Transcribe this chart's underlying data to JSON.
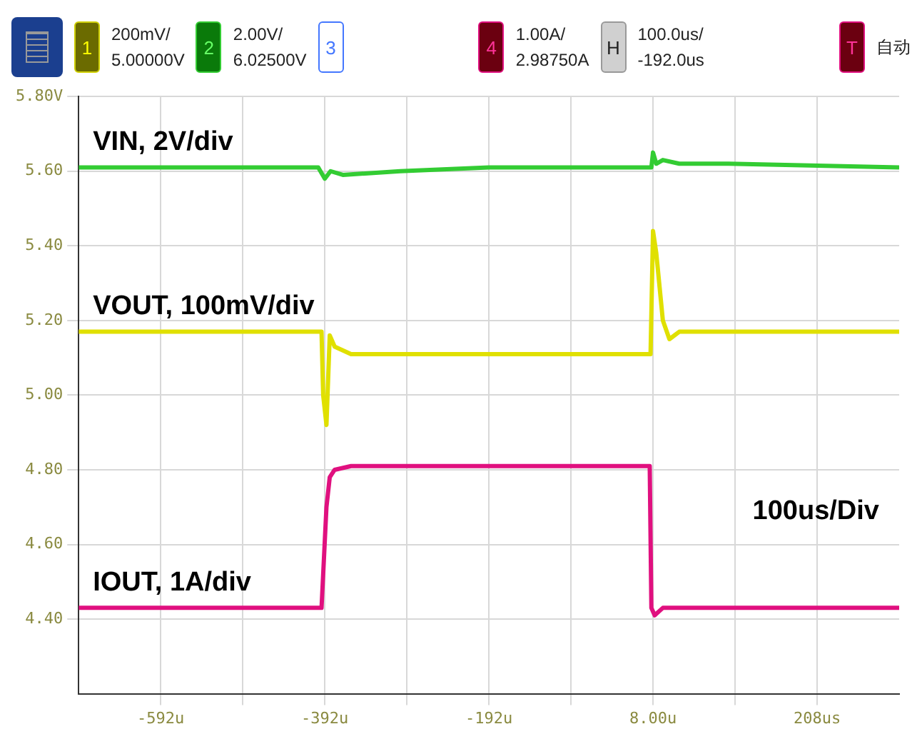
{
  "chart_data": {
    "type": "line",
    "xlim": [
      -692,
      308
    ],
    "ylim": [
      4.2,
      5.8
    ],
    "xticks": [
      {
        "value": -592,
        "label": "-592u"
      },
      {
        "value": -492,
        "label": null
      },
      {
        "value": -392,
        "label": "-392u"
      },
      {
        "value": -292,
        "label": null
      },
      {
        "value": -192,
        "label": "-192u"
      },
      {
        "value": -92,
        "label": null
      },
      {
        "value": 8,
        "label": "8.00u"
      },
      {
        "value": 108,
        "label": null
      },
      {
        "value": 208,
        "label": "208us"
      }
    ],
    "yticks": [
      {
        "value": 5.8,
        "label": "5.80V"
      },
      {
        "value": 5.6,
        "label": "5.60"
      },
      {
        "value": 5.4,
        "label": "5.40"
      },
      {
        "value": 5.2,
        "label": "5.20"
      },
      {
        "value": 5.0,
        "label": "5.00"
      },
      {
        "value": 4.8,
        "label": "4.80"
      },
      {
        "value": 4.6,
        "label": "4.60"
      },
      {
        "value": 4.4,
        "label": "4.40"
      }
    ],
    "grid": true,
    "legend": false,
    "marker": "none",
    "line_style": "solid",
    "series": [
      {
        "name": "VIN, 2V/div",
        "color": "#33cc33",
        "x": [
          -692,
          -400,
          -392,
          -385,
          -370,
          -300,
          -192,
          0,
          6,
          8,
          12,
          20,
          40,
          100,
          308
        ],
        "values": [
          5.61,
          5.61,
          5.58,
          5.6,
          5.59,
          5.6,
          5.61,
          5.61,
          5.61,
          5.65,
          5.62,
          5.63,
          5.62,
          5.62,
          5.61
        ]
      },
      {
        "name": "VOUT, 100mV/div",
        "color": "#e0e000",
        "x": [
          -692,
          -396,
          -394,
          -390,
          -386,
          -380,
          -360,
          -300,
          -192,
          0,
          5,
          8,
          12,
          20,
          28,
          40,
          308
        ],
        "values": [
          5.17,
          5.17,
          5.0,
          4.92,
          5.16,
          5.13,
          5.11,
          5.11,
          5.11,
          5.11,
          5.11,
          5.44,
          5.38,
          5.2,
          5.15,
          5.17,
          5.17
        ]
      },
      {
        "name": "IOUT, 1A/div",
        "color": "#e0107f",
        "x": [
          -692,
          -396,
          -390,
          -386,
          -380,
          -360,
          -192,
          4,
          6,
          10,
          20,
          40,
          308
        ],
        "values": [
          4.43,
          4.43,
          4.7,
          4.78,
          4.8,
          4.81,
          4.81,
          4.81,
          4.43,
          4.41,
          4.43,
          4.43,
          4.43
        ]
      }
    ],
    "annotations": [
      "1",
      "200mV/",
      "5.00000V",
      "2",
      "2.00V/",
      "6.02500V",
      "3",
      "4",
      "1.00A/",
      "2.98750A",
      "H",
      "100.0us/",
      "-192.0us",
      "T",
      "自动",
      "100us/Div"
    ]
  }
}
